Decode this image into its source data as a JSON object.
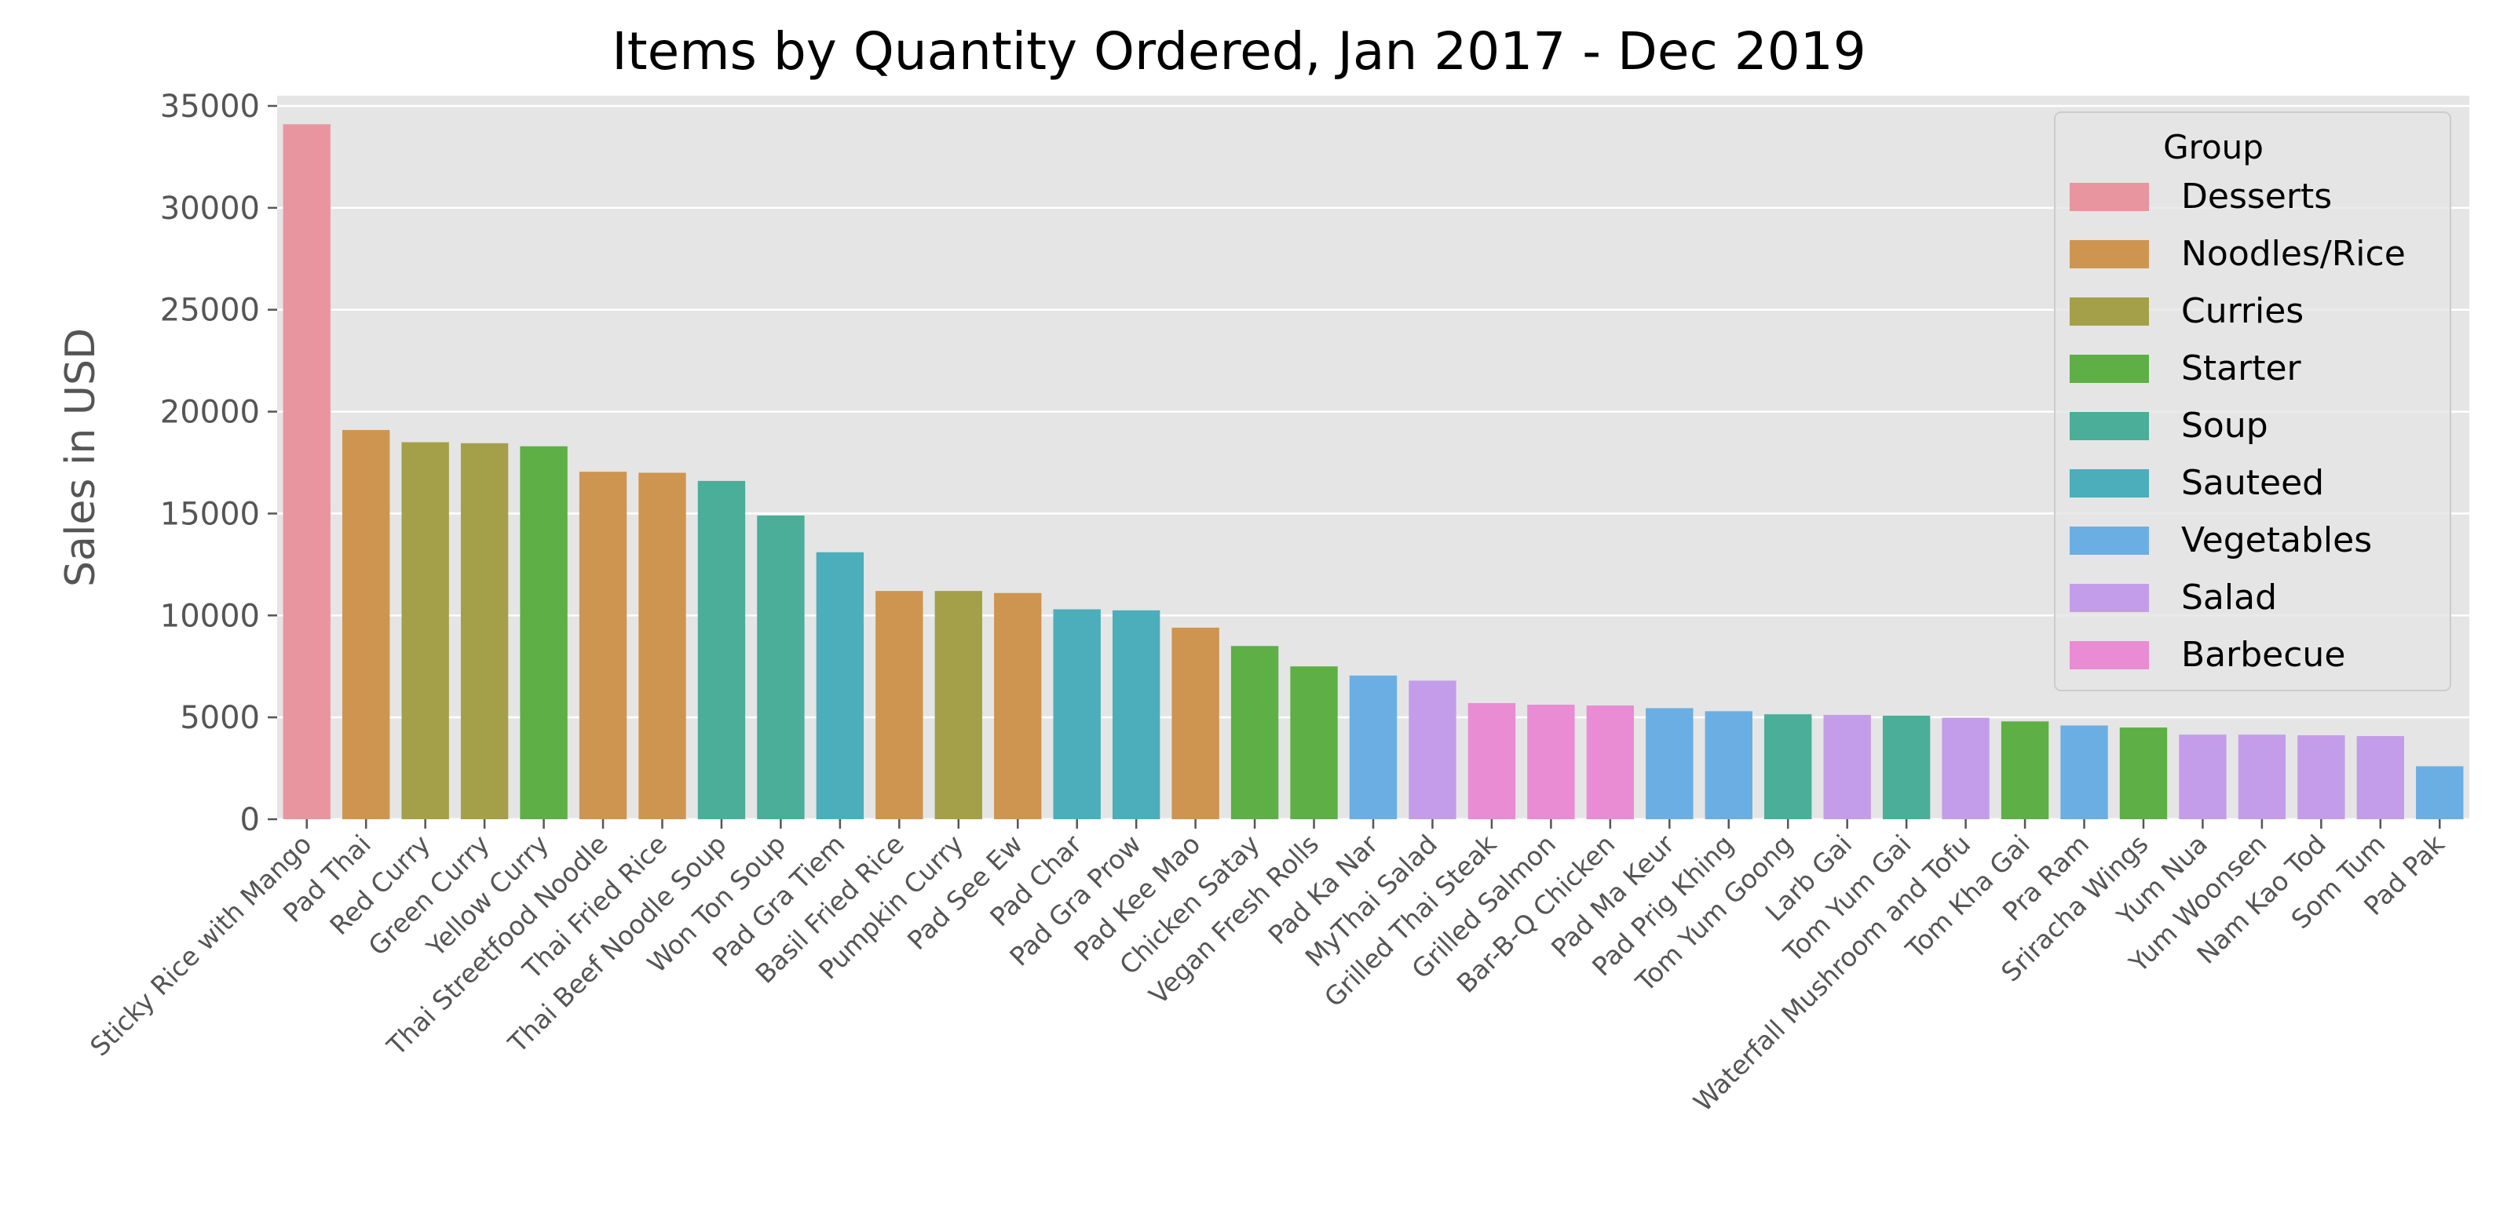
{
  "chart_data": {
    "type": "bar",
    "title": "Items by Quantity Ordered, Jan 2017 - Dec 2019",
    "xlabel": "",
    "ylabel": "Sales in USD",
    "ylim": [
      0,
      35500
    ],
    "yticks": [
      0,
      5000,
      10000,
      15000,
      20000,
      25000,
      30000,
      35000
    ],
    "grid": true,
    "legend_position": "top-right",
    "legend_title": "Group",
    "groups": [
      {
        "name": "Desserts",
        "color": "#E8959F"
      },
      {
        "name": "Noodles/Rice",
        "color": "#CE9550"
      },
      {
        "name": "Curries",
        "color": "#A4A04A"
      },
      {
        "name": "Starter",
        "color": "#5DAF46"
      },
      {
        "name": "Soup",
        "color": "#4AAE98"
      },
      {
        "name": "Sauteed",
        "color": "#4BAEBA"
      },
      {
        "name": "Vegetables",
        "color": "#6BAEE4"
      },
      {
        "name": "Salad",
        "color": "#C49DEA"
      },
      {
        "name": "Barbecue",
        "color": "#E98CD3"
      }
    ],
    "categories": [
      "Sticky Rice with Mango",
      "Pad Thai",
      "Red Curry",
      "Green Curry",
      "Yellow Curry",
      "Thai Streetfood Noodle",
      "Thai Fried Rice",
      "Thai Beef Noodle Soup",
      "Won Ton Soup",
      "Pad Gra Tiem",
      "Basil Fried Rice",
      "Pumpkin Curry",
      "Pad See Ew",
      "Pad Char",
      "Pad Gra Prow",
      "Pad Kee Mao",
      "Chicken Satay",
      "Vegan Fresh Rolls",
      "Pad Ka Nar",
      "MyThai Salad",
      "Grilled Thai Steak",
      "Grilled Salmon",
      "Bar-B-Q Chicken",
      "Pad Ma Keur",
      "Pad Prig Khing",
      "Tom Yum Goong",
      "Larb Gai",
      "Tom Yum Gai",
      "Waterfall Mushroom and Tofu",
      "Tom Kha Gai",
      "Pra Ram",
      "Sriracha Wings",
      "Yum Nua",
      "Yum Woonsen",
      "Nam Kao Tod",
      "Som Tum",
      "Pad Pak"
    ],
    "values": [
      34100,
      19100,
      18500,
      18450,
      18300,
      17050,
      17000,
      16600,
      14900,
      13100,
      11200,
      11200,
      11100,
      10300,
      10250,
      9400,
      8500,
      7500,
      7050,
      6800,
      5700,
      5620,
      5580,
      5450,
      5300,
      5150,
      5120,
      5080,
      4980,
      4800,
      4600,
      4500,
      4150,
      4150,
      4120,
      4080,
      2600
    ],
    "bar_groups": [
      "Desserts",
      "Noodles/Rice",
      "Curries",
      "Curries",
      "Starter",
      "Noodles/Rice",
      "Noodles/Rice",
      "Soup",
      "Soup",
      "Sauteed",
      "Noodles/Rice",
      "Curries",
      "Noodles/Rice",
      "Sauteed",
      "Sauteed",
      "Noodles/Rice",
      "Starter",
      "Starter",
      "Vegetables",
      "Salad",
      "Barbecue",
      "Barbecue",
      "Barbecue",
      "Vegetables",
      "Vegetables",
      "Soup",
      "Salad",
      "Soup",
      "Salad",
      "Starter",
      "Vegetables",
      "Starter",
      "Salad",
      "Salad",
      "Salad",
      "Salad",
      "Vegetables"
    ]
  }
}
